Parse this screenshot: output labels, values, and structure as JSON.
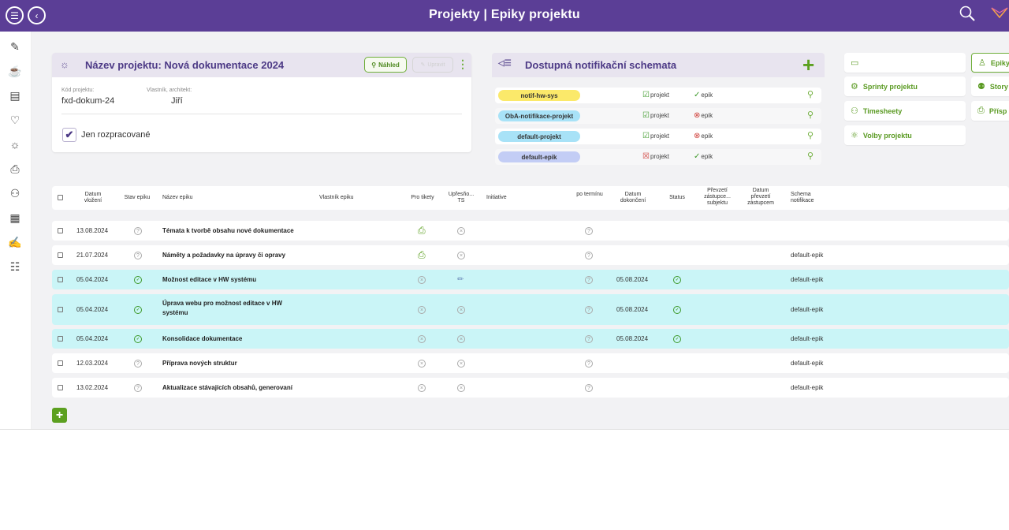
{
  "header": {
    "title": "Projekty | Epiky projektu"
  },
  "project": {
    "title": "Název projektu: Nová dokumentace 2024",
    "btn_preview": "Náhled",
    "btn_edit": "Upravit",
    "code_label": "Kód projektu:",
    "code_value": "fxd-dokum-24",
    "owner_label": "Vlastník, architekt:",
    "owner_value": "Jiří",
    "checkbox_label": "Jen rozpracované"
  },
  "notif": {
    "title": "Dostupná notifikační schemata",
    "rows": [
      {
        "name": "notif-hw-sys",
        "color": "#fbe96a",
        "projekt_label": "projekt",
        "epik_label": "epik",
        "projekt_ok": true,
        "epik_ok": true
      },
      {
        "name": "ObA-notifikace-projekt",
        "color": "#a8e2f7",
        "projekt_label": "projekt",
        "epik_label": "epik",
        "projekt_ok": true,
        "epik_ok": false
      },
      {
        "name": "default-projekt",
        "color": "#a8e2f7",
        "projekt_label": "projekt",
        "epik_label": "epik",
        "projekt_ok": true,
        "epik_ok": false
      },
      {
        "name": "default-epik",
        "color": "#c3cdf5",
        "projekt_label": "projekt",
        "epik_label": "epik",
        "projekt_ok": false,
        "epik_ok": true
      }
    ]
  },
  "right_buttons": {
    "sprints": "Sprinty projektu",
    "timesheets": "Timesheety",
    "options": "Volby projektu",
    "epiky": "Epiky",
    "story": "Story",
    "prispevky": "Přísp"
  },
  "table": {
    "headers": {
      "date_in": "Datum vložení",
      "state": "Stav epiku",
      "name": "Název epiku",
      "owner": "Vlastník epiku",
      "tickets": "Pro tikety",
      "ts": "Upřesňo... TS",
      "initiative": "Initiative",
      "overdue": "po termínu",
      "date_done": "Datum dokončení",
      "status": "Status",
      "takeover": "Převzetí zástupce... subjektu",
      "takeover_date": "Datum převzetí zástupcem",
      "schema": "Schema notifikace"
    },
    "rows": [
      {
        "date": "13.08.2024",
        "name": "Témata k tvorbě obsahu nové dokumentace",
        "done": "",
        "schema": "",
        "highlight": false
      },
      {
        "date": "21.07.2024",
        "name": "Náměty a požadavky na úpravy či opravy",
        "done": "",
        "schema": "default-epik",
        "highlight": false
      },
      {
        "date": "05.04.2024",
        "name": "Možnost editace v HW systému",
        "done": "05.08.2024",
        "schema": "default-epik",
        "highlight": true
      },
      {
        "date": "05.04.2024",
        "name": "Úprava webu pro možnost editace v HW systému",
        "done": "05.08.2024",
        "schema": "default-epik",
        "highlight": true
      },
      {
        "date": "05.04.2024",
        "name": "Konsolidace dokumentace",
        "done": "05.08.2024",
        "schema": "default-epik",
        "highlight": true
      },
      {
        "date": "12.03.2024",
        "name": "Příprava nových struktur",
        "done": "",
        "schema": "default-epik",
        "highlight": false
      },
      {
        "date": "13.02.2024",
        "name": "Aktualizace stávajících obsahů, generovaní",
        "done": "",
        "schema": "default-epik",
        "highlight": false
      }
    ]
  },
  "icons": {
    "menu": "menu-icon",
    "back": "back-icon",
    "search": "search-icon",
    "logo": "logo-icon"
  }
}
